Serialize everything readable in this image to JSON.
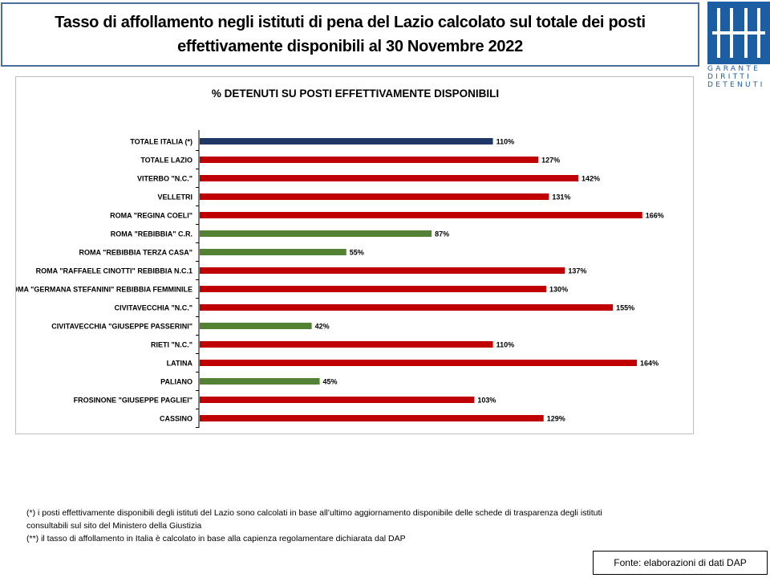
{
  "header": {
    "title_line1": "Tasso di affollamento negli istituti di pena del Lazio calcolato sul totale dei posti",
    "title_line2": "effettivamente disponibili al 30 Novembre  2022"
  },
  "logo": {
    "line1": "GARANTE",
    "line2": "DIRITTI",
    "line3": "DETENUTI",
    "color": "#1d5ea3"
  },
  "chart_data": {
    "type": "bar",
    "orientation": "horizontal",
    "title": "% DETENUTI SU POSTI EFFETTIVAMENTE DISPONIBILI",
    "xlabel": "",
    "ylabel": "",
    "xlim": [
      0,
      170
    ],
    "grid": false,
    "legend": "none",
    "value_suffix": "%",
    "colors": {
      "national": "#1f3864",
      "over": "#c00000",
      "under": "#548235"
    },
    "categories": [
      "TOTALE ITALIA (*)",
      "TOTALE LAZIO",
      "VITERBO \"N.C.\"",
      "VELLETRI",
      "ROMA \"REGINA COELI\"",
      "ROMA \"REBIBBIA\" C.R.",
      "ROMA \"REBIBBIA TERZA CASA\"",
      "ROMA \"RAFFAELE CINOTTI\" REBIBBIA N.C.1",
      "ROMA \"GERMANA STEFANINI\" REBIBBIA FEMMINILE",
      "CIVITAVECCHIA \"N.C.\"",
      "CIVITAVECCHIA \"GIUSEPPE PASSERINI\"",
      "RIETI \"N.C.\"",
      "LATINA",
      "PALIANO",
      "FROSINONE \"GIUSEPPE PAGLIEI\"",
      "CASSINO"
    ],
    "values": [
      110,
      127,
      142,
      131,
      166,
      87,
      55,
      137,
      130,
      155,
      42,
      110,
      164,
      45,
      103,
      129
    ],
    "bar_colors": [
      "national",
      "over",
      "over",
      "over",
      "over",
      "under",
      "under",
      "over",
      "over",
      "over",
      "under",
      "over",
      "over",
      "under",
      "over",
      "over"
    ]
  },
  "notes": {
    "line1": "(*) i posti effettivamente disponibili  degli istituti del Lazio sono calcolati in base all’ultimo aggiornamento disponibile  delle schede di trasparenza degli istituti",
    "line2": "consultabili sul sito del Ministero della Giustizia",
    "line3": "(**) il tasso di affollamento in Italia è calcolato in base alla capienza regolamentare dichiarata dal DAP"
  },
  "source": {
    "label": "Fonte: elaborazioni di dati DAP"
  }
}
